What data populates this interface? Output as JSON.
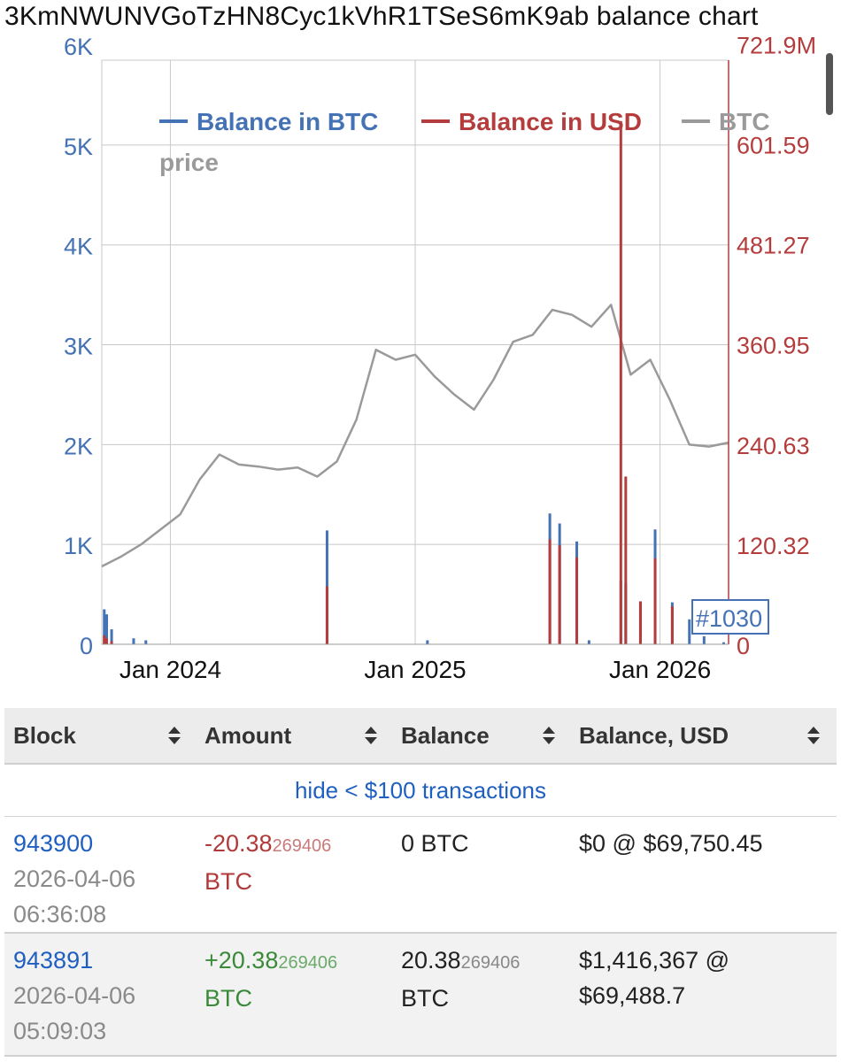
{
  "title": "3KmNWUNVGoTzHN8Cyc1kVhR1TSeS6mK9ab balance chart",
  "colors": {
    "btc": "#4472b5",
    "usd": "#b43c3c",
    "price": "#9a9a9a",
    "grid": "#c8c8c8",
    "link": "#1f5fbf"
  },
  "chart_data": {
    "type": "bar",
    "legend": [
      "Balance in BTC",
      "Balance in USD",
      "BTC price"
    ],
    "legend_position": "top",
    "x_range": [
      2023.72,
      2026.28
    ],
    "x_ticks": [
      {
        "value": 2024.0,
        "label": "Jan 2024"
      },
      {
        "value": 2025.0,
        "label": "Jan 2025"
      },
      {
        "value": 2026.0,
        "label": "Jan 2026"
      }
    ],
    "y_left": {
      "range": [
        0,
        5850
      ],
      "ticks": [
        {
          "value": 0,
          "label": "0"
        },
        {
          "value": 1000,
          "label": "1K"
        },
        {
          "value": 2000,
          "label": "2K"
        },
        {
          "value": 3000,
          "label": "3K"
        },
        {
          "value": 4000,
          "label": "4K"
        },
        {
          "value": 5000,
          "label": "5K"
        },
        {
          "value": 6000,
          "label": "6K"
        }
      ]
    },
    "y_right": {
      "range": [
        0,
        702
      ],
      "ticks": [
        {
          "value": 0,
          "label": "0"
        },
        {
          "value": 120.32,
          "label": "120.32"
        },
        {
          "value": 240.63,
          "label": "240.63"
        },
        {
          "value": 360.95,
          "label": "360.95"
        },
        {
          "value": 481.27,
          "label": "481.27"
        },
        {
          "value": 601.59,
          "label": "601.59"
        },
        {
          "value": 721.9,
          "label": "721.9M"
        }
      ]
    },
    "series": [
      {
        "name": "Balance in BTC",
        "axis": "left",
        "x": [
          2023.73,
          2023.74,
          2023.76,
          2023.85,
          2023.9,
          2024.64,
          2025.05,
          2025.55,
          2025.59,
          2025.66,
          2025.71,
          2025.84,
          2025.86,
          2025.92,
          2025.98,
          2026.05,
          2026.12,
          2026.18,
          2026.26
        ],
        "values": [
          350,
          300,
          150,
          60,
          40,
          1140,
          40,
          1310,
          1210,
          1030,
          40,
          640,
          610,
          430,
          1150,
          420,
          250,
          80,
          20
        ]
      },
      {
        "name": "Balance in USD",
        "axis": "left",
        "x": [
          2023.73,
          2023.74,
          2023.76,
          2024.64,
          2025.55,
          2025.59,
          2025.66,
          2025.84,
          2025.86,
          2025.92,
          2025.98,
          2026.05
        ],
        "values": [
          90,
          60,
          30,
          580,
          1050,
          990,
          870,
          5240,
          1680,
          430,
          860,
          380
        ]
      },
      {
        "name": "BTC price",
        "axis": "left",
        "x": [
          2023.72,
          2023.8,
          2023.88,
          2023.96,
          2024.04,
          2024.12,
          2024.2,
          2024.28,
          2024.36,
          2024.44,
          2024.52,
          2024.6,
          2024.68,
          2024.76,
          2024.84,
          2024.92,
          2025.0,
          2025.08,
          2025.16,
          2025.24,
          2025.32,
          2025.4,
          2025.48,
          2025.56,
          2025.64,
          2025.72,
          2025.8,
          2025.88,
          2025.96,
          2026.04,
          2026.12,
          2026.2,
          2026.28
        ],
        "values": [
          780,
          880,
          1000,
          1150,
          1300,
          1650,
          1900,
          1800,
          1780,
          1750,
          1770,
          1680,
          1830,
          2250,
          2950,
          2850,
          2900,
          2680,
          2500,
          2350,
          2650,
          3030,
          3100,
          3350,
          3300,
          3180,
          3400,
          2700,
          2850,
          2450,
          2000,
          1980,
          2020
        ]
      }
    ],
    "annotation": "#1030"
  },
  "table": {
    "headers": [
      "Block",
      "Amount",
      "Balance",
      "Balance, USD"
    ],
    "filter_link": "hide < $100 transactions",
    "rows": [
      {
        "block": "943900",
        "date": "2026-04-06",
        "time": "06:36:08",
        "amount_main": "-20.38",
        "amount_small": "269406",
        "amount_unit": "BTC",
        "balance_main": "0 BTC",
        "balance_small": "",
        "balance_unit": "",
        "usd_line1": "$0 @ $69,750.45",
        "usd_line2": ""
      },
      {
        "block": "943891",
        "date": "2026-04-06",
        "time": "05:09:03",
        "amount_main": "+20.38",
        "amount_small": "269406",
        "amount_unit": "BTC",
        "balance_main": "20.38",
        "balance_small": "269406",
        "balance_unit": "BTC",
        "usd_line1": "$1,416,367 @",
        "usd_line2": "$69,488.7"
      }
    ]
  }
}
